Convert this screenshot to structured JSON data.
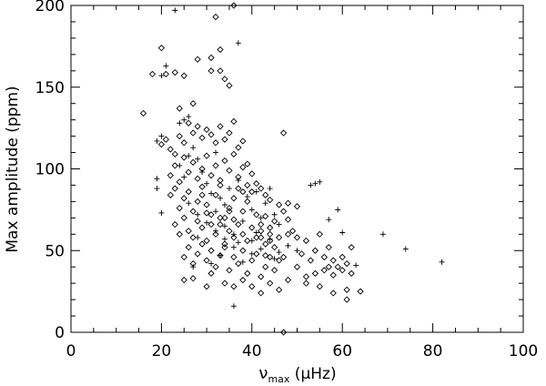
{
  "chart_data": {
    "type": "scatter",
    "title": "",
    "xlabel": {
      "main": "ν",
      "sub": "max",
      "rest": " (μHz)"
    },
    "ylabel": "Max amplitude (ppm)",
    "xlim": [
      0,
      100
    ],
    "ylim": [
      0,
      200
    ],
    "xticks": [
      0,
      20,
      40,
      60,
      80,
      100
    ],
    "yticks": [
      0,
      50,
      100,
      150,
      200
    ],
    "x_minor_step": 5,
    "y_minor_step": 10,
    "grid": false,
    "series": [
      {
        "marker": "diamond",
        "points": [
          [
            16,
            134
          ],
          [
            18,
            158
          ],
          [
            20,
            174
          ],
          [
            21,
            158
          ],
          [
            23,
            159
          ],
          [
            24,
            137
          ],
          [
            25,
            157
          ],
          [
            27,
            140
          ],
          [
            28,
            167
          ],
          [
            31,
            168
          ],
          [
            32,
            193
          ],
          [
            33,
            173
          ],
          [
            34,
            155
          ],
          [
            35,
            151
          ],
          [
            36,
            201
          ],
          [
            31,
            160
          ],
          [
            33,
            160
          ],
          [
            47,
            122
          ],
          [
            20,
            115
          ],
          [
            21,
            118
          ],
          [
            22,
            112
          ],
          [
            23,
            109
          ],
          [
            24,
            120
          ],
          [
            25,
            116
          ],
          [
            26,
            128
          ],
          [
            27,
            122
          ],
          [
            28,
            126
          ],
          [
            29,
            119
          ],
          [
            30,
            124
          ],
          [
            31,
            121
          ],
          [
            32,
            116
          ],
          [
            33,
            126
          ],
          [
            34,
            118
          ],
          [
            35,
            122
          ],
          [
            36,
            129
          ],
          [
            37,
            113
          ],
          [
            38,
            117
          ],
          [
            22,
            96
          ],
          [
            23,
            102
          ],
          [
            24,
            92
          ],
          [
            25,
            107
          ],
          [
            26,
            98
          ],
          [
            27,
            104
          ],
          [
            28,
            94
          ],
          [
            29,
            100
          ],
          [
            30,
            108
          ],
          [
            31,
            96
          ],
          [
            32,
            102
          ],
          [
            33,
            93
          ],
          [
            34,
            105
          ],
          [
            35,
            99
          ],
          [
            36,
            109
          ],
          [
            37,
            95
          ],
          [
            38,
            101
          ],
          [
            39,
            103
          ],
          [
            40,
            97
          ],
          [
            41,
            91
          ],
          [
            42,
            88
          ],
          [
            43,
            84
          ],
          [
            44,
            81
          ],
          [
            46,
            78
          ],
          [
            48,
            79
          ],
          [
            50,
            77
          ],
          [
            22,
            84
          ],
          [
            23,
            88
          ],
          [
            24,
            76
          ],
          [
            25,
            82
          ],
          [
            26,
            86
          ],
          [
            27,
            74
          ],
          [
            28,
            80
          ],
          [
            29,
            89
          ],
          [
            30,
            78
          ],
          [
            31,
            72
          ],
          [
            32,
            84
          ],
          [
            33,
            90
          ],
          [
            34,
            70
          ],
          [
            35,
            76
          ],
          [
            36,
            82
          ],
          [
            37,
            88
          ],
          [
            38,
            74
          ],
          [
            39,
            80
          ],
          [
            40,
            86
          ],
          [
            41,
            72
          ],
          [
            42,
            66
          ],
          [
            43,
            71
          ],
          [
            44,
            64
          ],
          [
            45,
            68
          ],
          [
            23,
            66
          ],
          [
            24,
            60
          ],
          [
            25,
            70
          ],
          [
            26,
            62
          ],
          [
            27,
            58
          ],
          [
            28,
            68
          ],
          [
            29,
            64
          ],
          [
            30,
            56
          ],
          [
            31,
            66
          ],
          [
            32,
            60
          ],
          [
            33,
            70
          ],
          [
            34,
            54
          ],
          [
            35,
            62
          ],
          [
            36,
            58
          ],
          [
            37,
            66
          ],
          [
            38,
            60
          ],
          [
            39,
            56
          ],
          [
            40,
            64
          ],
          [
            41,
            58
          ],
          [
            42,
            62
          ],
          [
            43,
            54
          ],
          [
            44,
            60
          ],
          [
            45,
            52
          ],
          [
            46,
            58
          ],
          [
            25,
            46
          ],
          [
            26,
            52
          ],
          [
            27,
            42
          ],
          [
            28,
            48
          ],
          [
            29,
            54
          ],
          [
            30,
            44
          ],
          [
            31,
            50
          ],
          [
            32,
            40
          ],
          [
            33,
            47
          ],
          [
            34,
            52
          ],
          [
            35,
            38
          ],
          [
            36,
            46
          ],
          [
            37,
            42
          ],
          [
            38,
            50
          ],
          [
            39,
            36
          ],
          [
            40,
            44
          ],
          [
            41,
            48
          ],
          [
            42,
            34
          ],
          [
            43,
            40
          ],
          [
            44,
            46
          ],
          [
            45,
            38
          ],
          [
            46,
            44
          ],
          [
            25,
            32
          ],
          [
            30,
            28
          ],
          [
            34,
            30
          ],
          [
            38,
            32
          ],
          [
            40,
            28
          ],
          [
            42,
            24
          ],
          [
            44,
            30
          ],
          [
            46,
            26
          ],
          [
            48,
            32
          ],
          [
            52,
            30
          ],
          [
            55,
            28
          ],
          [
            58,
            24
          ],
          [
            61,
            26
          ],
          [
            61,
            20
          ],
          [
            64,
            25
          ],
          [
            48,
            60
          ],
          [
            49,
            62
          ],
          [
            50,
            58
          ],
          [
            52,
            56
          ],
          [
            54,
            50
          ],
          [
            55,
            60
          ],
          [
            56,
            46
          ],
          [
            57,
            52
          ],
          [
            58,
            44
          ],
          [
            59,
            40
          ],
          [
            60,
            46
          ],
          [
            61,
            42
          ],
          [
            62,
            52
          ],
          [
            56,
            38
          ],
          [
            53,
            44
          ],
          [
            57,
            40
          ],
          [
            60,
            38
          ],
          [
            62,
            36
          ],
          [
            54,
            36
          ],
          [
            51,
            48
          ],
          [
            58,
            35
          ],
          [
            52,
            34
          ],
          [
            47,
            74
          ],
          [
            48,
            69
          ],
          [
            47,
            0
          ],
          [
            31,
            36
          ],
          [
            27,
            33
          ],
          [
            36,
            28
          ],
          [
            47,
            46
          ],
          [
            50,
            40
          ],
          [
            33,
            66
          ],
          [
            35,
            74
          ],
          [
            36,
            69
          ],
          [
            29,
            84
          ],
          [
            30,
            73
          ],
          [
            38,
            86
          ],
          [
            39,
            90
          ],
          [
            42,
            58
          ],
          [
            43,
            47
          ],
          [
            44,
            56
          ]
        ]
      },
      {
        "marker": "plus",
        "points": [
          [
            23,
            197
          ],
          [
            21,
            163
          ],
          [
            20,
            157
          ],
          [
            37,
            177
          ],
          [
            24,
            128
          ],
          [
            20,
            120
          ],
          [
            19,
            117
          ],
          [
            25,
            130
          ],
          [
            26,
            132
          ],
          [
            19,
            94
          ],
          [
            19,
            88
          ],
          [
            20,
            73
          ],
          [
            24,
            102
          ],
          [
            25,
            95
          ],
          [
            26,
            108
          ],
          [
            27,
            113
          ],
          [
            28,
            106
          ],
          [
            29,
            98
          ],
          [
            30,
            91
          ],
          [
            31,
            85
          ],
          [
            32,
            110
          ],
          [
            33,
            82
          ],
          [
            34,
            78
          ],
          [
            35,
            88
          ],
          [
            37,
            93
          ],
          [
            39,
            83
          ],
          [
            40,
            75
          ],
          [
            41,
            86
          ],
          [
            42,
            70
          ],
          [
            43,
            79
          ],
          [
            44,
            88
          ],
          [
            45,
            72
          ],
          [
            46,
            66
          ],
          [
            26,
            79
          ],
          [
            28,
            72
          ],
          [
            30,
            67
          ],
          [
            32,
            74
          ],
          [
            34,
            65
          ],
          [
            36,
            60
          ],
          [
            38,
            68
          ],
          [
            40,
            56
          ],
          [
            42,
            51
          ],
          [
            44,
            57
          ],
          [
            46,
            49
          ],
          [
            48,
            53
          ],
          [
            50,
            50
          ],
          [
            45,
            45
          ],
          [
            28,
            58
          ],
          [
            32,
            62
          ],
          [
            34,
            57
          ],
          [
            36,
            52
          ],
          [
            37,
            55
          ],
          [
            40,
            48
          ],
          [
            41,
            61
          ],
          [
            38,
            43
          ],
          [
            33,
            47
          ],
          [
            54,
            91
          ],
          [
            53,
            90
          ],
          [
            55,
            92
          ],
          [
            59,
            75
          ],
          [
            60,
            61
          ],
          [
            57,
            69
          ],
          [
            63,
            41
          ],
          [
            69,
            60
          ],
          [
            74,
            51
          ],
          [
            82,
            43
          ],
          [
            36,
            16
          ],
          [
            27,
            40
          ],
          [
            31,
            42
          ]
        ]
      }
    ]
  }
}
